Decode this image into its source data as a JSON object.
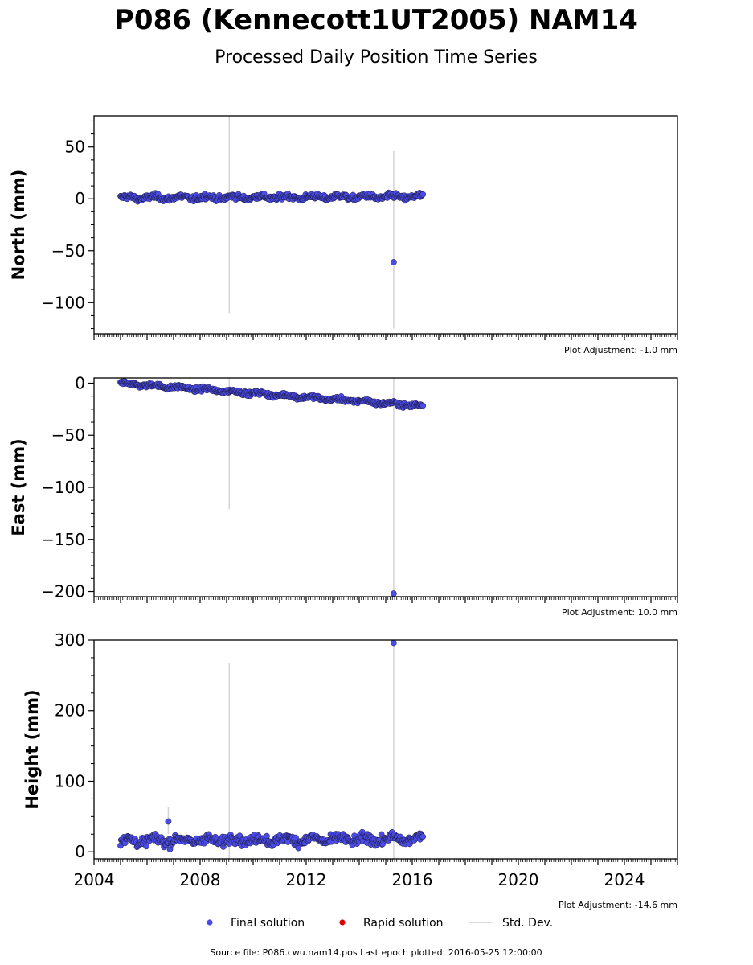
{
  "header": {
    "title": "P086 (Kennecott1UT2005) NAM14",
    "subtitle": "Processed Daily Position Time Series"
  },
  "legend": {
    "final_label": "Final solution",
    "rapid_label": "Rapid solution",
    "std_label": "Std. Dev."
  },
  "footer": {
    "source": "Source file: P086.cwu.nam14.pos  Last epoch plotted: 2016-05-25 12:00:00"
  },
  "colors": {
    "final": "#4b4bea",
    "final_edge": "#1a1a3a",
    "rapid": "#dd0000",
    "std": "#d3d3d3"
  },
  "chart_data": [
    {
      "type": "scatter",
      "ylabel": "North (mm)",
      "adjustment": "Plot Adjustment: -1.0 mm",
      "xlim": [
        2004.0,
        2026.0
      ],
      "ylim": [
        -130,
        80
      ],
      "yticks": [
        50,
        0,
        -50,
        -100
      ],
      "show_xticklabels": false,
      "series": [
        {
          "trend": {
            "x": [
              2005.0,
              2016.4
            ],
            "y": [
              1,
              2
            ]
          },
          "noise": 4,
          "outliers": [
            {
              "x": 2015.3,
              "y": -61
            }
          ],
          "std_bars": [
            {
              "x": 2009.1,
              "lo": -110,
              "hi": 80
            },
            {
              "x": 2015.3,
              "lo": -125,
              "hi": 46
            }
          ]
        }
      ]
    },
    {
      "type": "scatter",
      "ylabel": "East (mm)",
      "adjustment": "Plot Adjustment: 10.0 mm",
      "xlim": [
        2004.0,
        2026.0
      ],
      "ylim": [
        -205,
        5
      ],
      "yticks": [
        0,
        -50,
        -100,
        -150,
        -200
      ],
      "show_xticklabels": false,
      "series": [
        {
          "trend": {
            "x": [
              2005.0,
              2016.4
            ],
            "y": [
              0,
              -22
            ]
          },
          "noise": 3,
          "outliers": [
            {
              "x": 2015.3,
              "y": -202
            }
          ],
          "std_bars": [
            {
              "x": 2009.1,
              "lo": -121,
              "hi": 5
            },
            {
              "x": 2015.3,
              "lo": -205,
              "hi": 5
            }
          ]
        }
      ]
    },
    {
      "type": "scatter",
      "ylabel": "Height (mm)",
      "adjustment": "Plot Adjustment: -14.6 mm",
      "xlim": [
        2004.0,
        2026.0
      ],
      "ylim": [
        -10,
        300
      ],
      "yticks": [
        300,
        200,
        100,
        0
      ],
      "xticks": [
        2004,
        2008,
        2012,
        2016,
        2020,
        2024
      ],
      "show_xticklabels": true,
      "series": [
        {
          "trend": {
            "x": [
              2005.0,
              2016.4
            ],
            "y": [
              16,
              18
            ]
          },
          "noise": 10,
          "outliers": [
            {
              "x": 2015.3,
              "y": 296
            },
            {
              "x": 2006.8,
              "y": 43
            }
          ],
          "std_bars": [
            {
              "x": 2009.1,
              "lo": -10,
              "hi": 268
            },
            {
              "x": 2015.3,
              "lo": -10,
              "hi": 300
            },
            {
              "x": 2006.8,
              "lo": 25,
              "hi": 63
            }
          ]
        }
      ]
    }
  ]
}
